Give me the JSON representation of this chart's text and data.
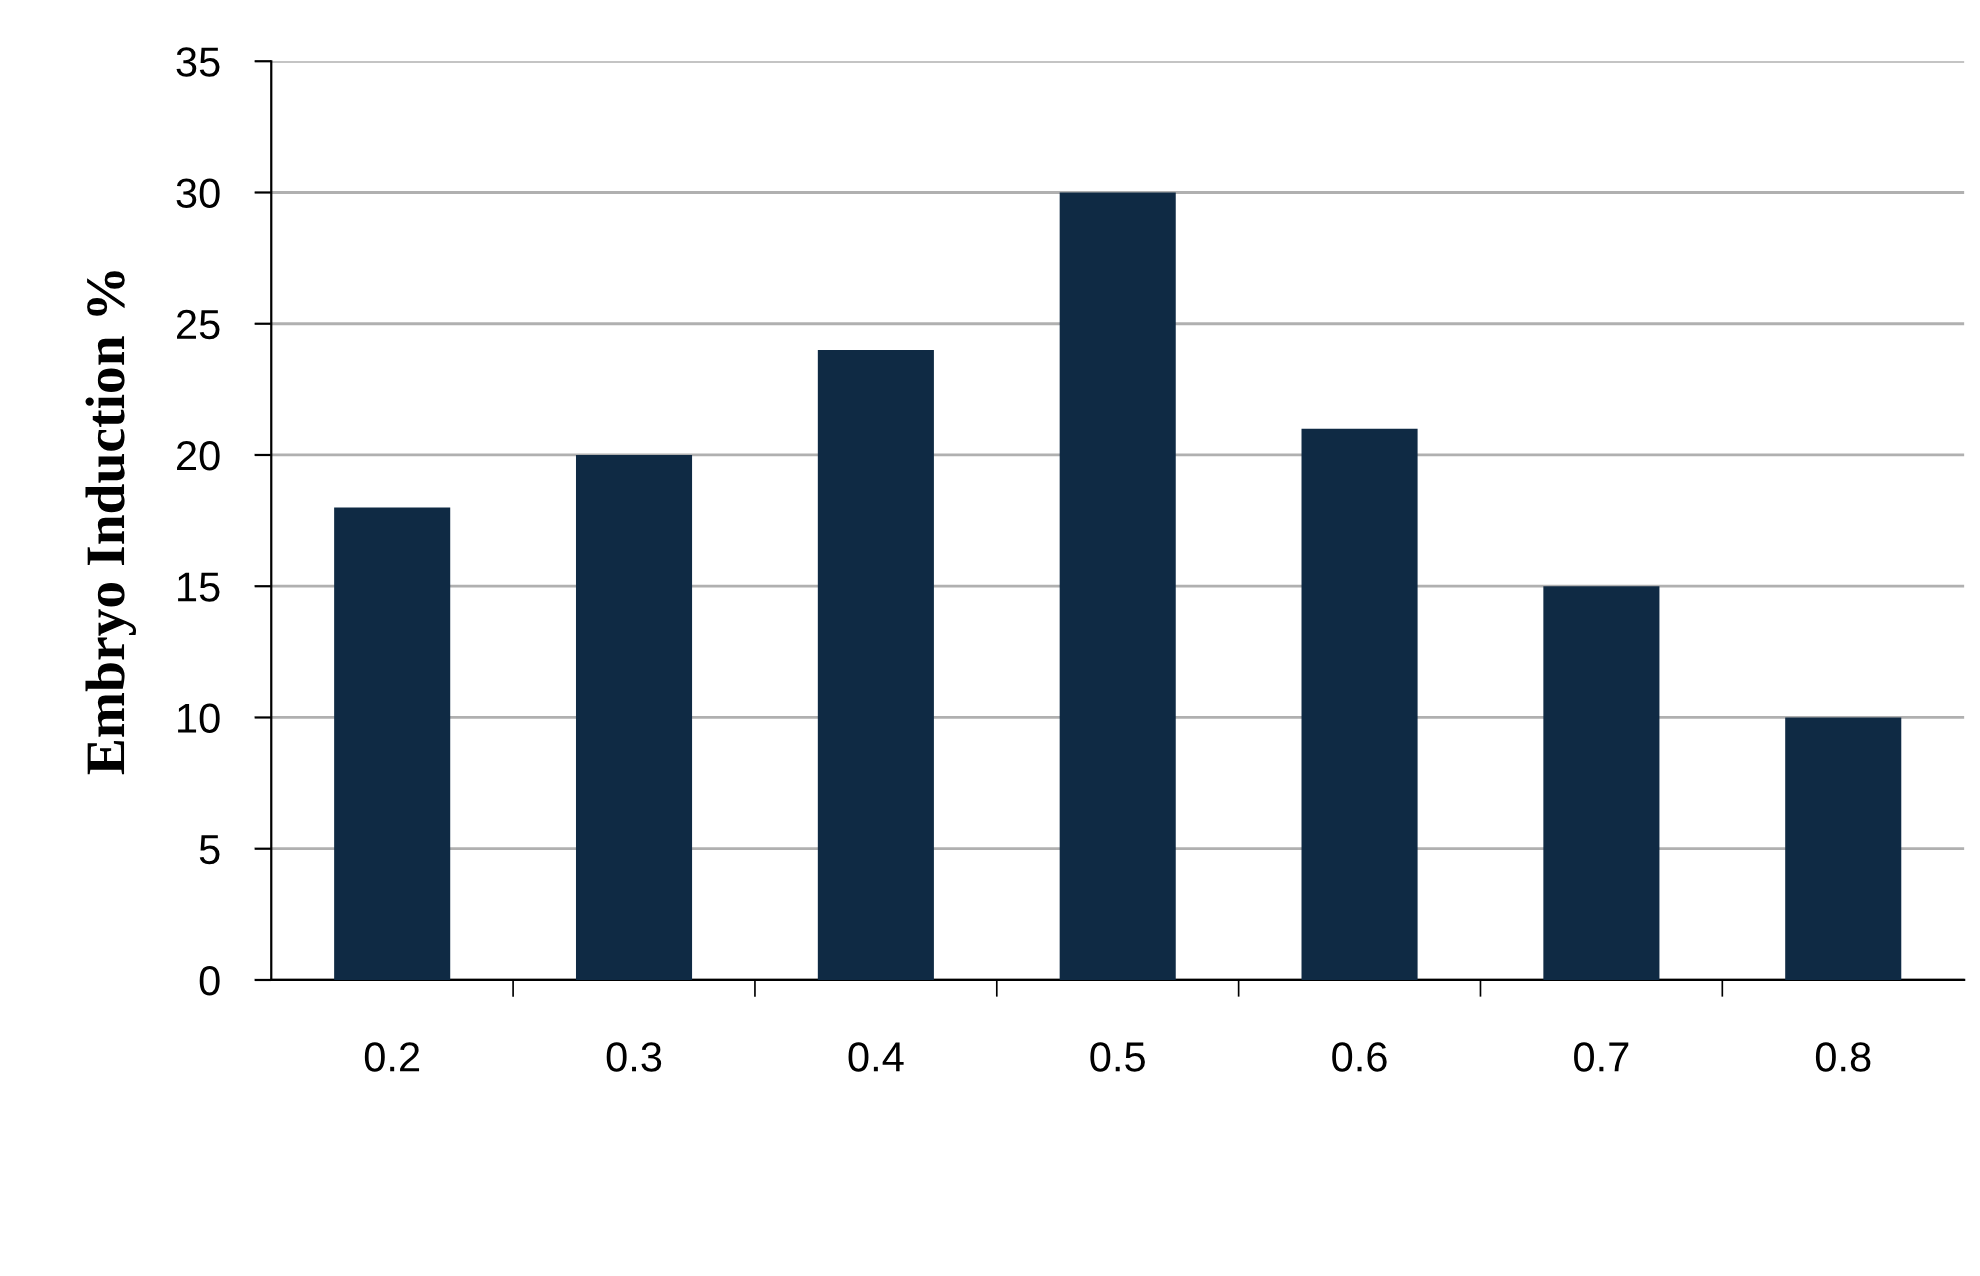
{
  "chart_data": {
    "type": "bar",
    "ylabel": "Embryo Induction %",
    "categories": [
      "0.2",
      "0.3",
      "0.4",
      "0.5",
      "0.6",
      "0.7",
      "0.8"
    ],
    "values": [
      18,
      20,
      24,
      30,
      21,
      15,
      10
    ],
    "color": "#0f2a44",
    "ylim": [
      0,
      35
    ],
    "yticks": [
      0,
      5,
      10,
      15,
      20,
      25,
      30,
      35
    ],
    "grid": "y",
    "legend": false
  }
}
